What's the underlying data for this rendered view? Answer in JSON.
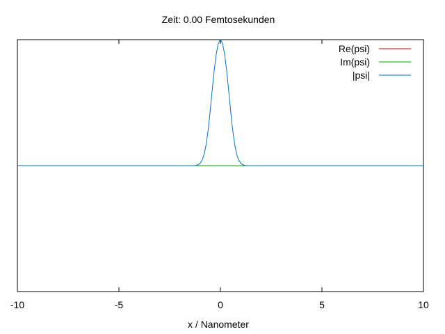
{
  "chart_data": {
    "type": "line",
    "title": "Zeit: 0.00 Femtosekunden",
    "xlabel": "x / Nanometer",
    "ylabel": "",
    "xlim": [
      -10,
      10
    ],
    "ylim": [
      -1,
      1
    ],
    "x_ticks": [
      -10,
      -5,
      0,
      5,
      10
    ],
    "x_tick_labels": [
      "-10",
      "-5",
      "0",
      "5",
      "10"
    ],
    "grid": false,
    "legend_position": "top-right",
    "series": [
      {
        "name": "Re(psi)",
        "color": "#cc0000",
        "x": [
          -10,
          -1.2,
          -1.0,
          -0.8,
          -0.6,
          -0.4,
          -0.2,
          0,
          0.2,
          0.4,
          0.6,
          0.8,
          1.0,
          1.2,
          10
        ],
        "y": [
          0,
          0,
          0,
          0,
          0,
          0,
          0,
          0,
          0,
          0,
          0,
          0,
          0,
          0,
          0
        ]
      },
      {
        "name": "Im(psi)",
        "color": "#00a000",
        "x": [
          -10,
          -1.2,
          -1.0,
          -0.8,
          -0.6,
          -0.4,
          -0.2,
          0,
          0.2,
          0.4,
          0.6,
          0.8,
          1.0,
          1.2,
          10
        ],
        "y": [
          0,
          0,
          0,
          0,
          0,
          0,
          0,
          0,
          0,
          0,
          0,
          0,
          0,
          0,
          0
        ]
      },
      {
        "name": "|psi|",
        "color": "#0072bd",
        "x": [
          -10,
          -1.3,
          -1.2,
          -1.1,
          -1.0,
          -0.9,
          -0.8,
          -0.7,
          -0.6,
          -0.5,
          -0.4,
          -0.3,
          -0.2,
          -0.1,
          0,
          0.1,
          0.2,
          0.3,
          0.4,
          0.5,
          0.6,
          0.7,
          0.8,
          0.9,
          1.0,
          1.1,
          1.2,
          1.3,
          10
        ],
        "y": [
          0,
          0.0,
          0.002,
          0.007,
          0.019,
          0.044,
          0.091,
          0.17,
          0.287,
          0.439,
          0.607,
          0.765,
          0.891,
          0.972,
          1.0,
          0.972,
          0.891,
          0.765,
          0.607,
          0.439,
          0.287,
          0.17,
          0.091,
          0.044,
          0.019,
          0.007,
          0.002,
          0.0,
          0
        ]
      }
    ]
  }
}
